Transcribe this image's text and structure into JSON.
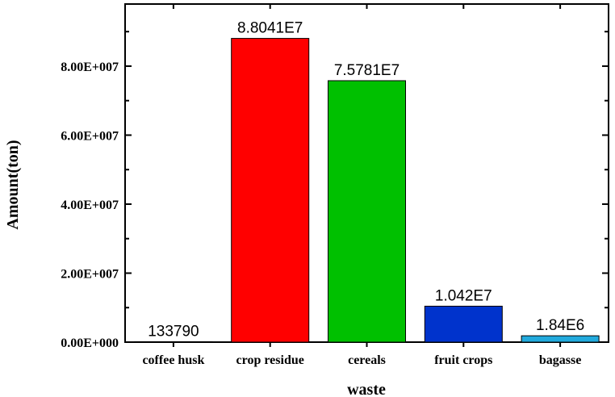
{
  "chart_data": {
    "type": "bar",
    "categories": [
      "coffee husk",
      "crop residue",
      "cereals",
      "fruit crops",
      "bagasse"
    ],
    "values": [
      133790,
      88041000,
      75781000,
      10420000,
      1840000
    ],
    "data_labels": [
      "133790",
      "8.8041E7",
      "7.5781E7",
      "1.042E7",
      "1.84E6"
    ],
    "colors": [
      "#ffffff",
      "#ff0000",
      "#00c000",
      "#0033cc",
      "#22aadd"
    ],
    "title": "",
    "xlabel": "waste",
    "ylabel": "Amount(ton)",
    "ylim": [
      0,
      98000000
    ],
    "yticks": [
      0,
      20000000,
      40000000,
      60000000,
      80000000
    ],
    "ytick_labels": [
      "0.00E+000",
      "2.00E+007",
      "4.00E+007",
      "6.00E+007",
      "8.00E+007"
    ],
    "grid": false,
    "legend": "none"
  }
}
